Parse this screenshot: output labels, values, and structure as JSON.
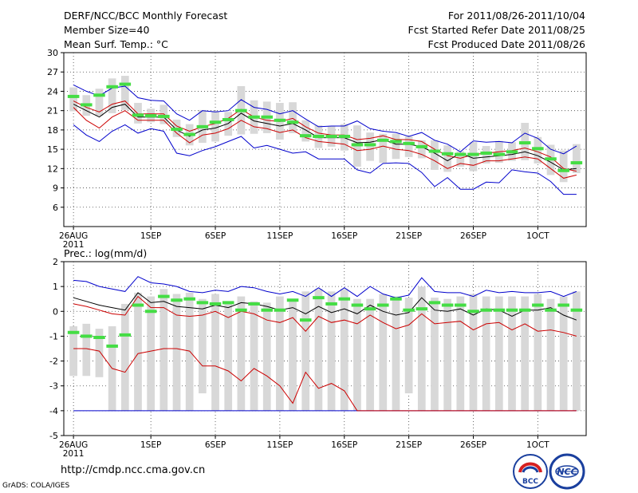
{
  "header": {
    "title": "DERF/NCC/BCC Monthly Forecast",
    "member_size": "Member Size=40",
    "variable": "Mean Surf. Temp.: °C",
    "period": "For 2011/08/26-2011/10/04",
    "started": "Fcst Started Refer Date 2011/08/25",
    "produced": "Fcst Produced Date 2011/08/26"
  },
  "footer": {
    "url": "http://cmdp.ncc.cma.gov.cn",
    "credit": "GrADS: COLA/IGES"
  },
  "logos": {
    "bcc": "BCC",
    "ncc": "NCC"
  },
  "colors": {
    "ensemble_max_min": "#0000cc",
    "ensemble_pm_sd": "#cc0000",
    "ensemble_mean": "#000000",
    "member_spread": "#d8d8d8",
    "climatology": "#44dd44",
    "grid": "#444444"
  },
  "chart_data": [
    {
      "type": "line",
      "title": "Mean Surf. Temp.: °C",
      "x_tick_labels": [
        "26AUG",
        "1SEP",
        "6SEP",
        "11SEP",
        "16SEP",
        "21SEP",
        "26SEP",
        "1OCT"
      ],
      "x_tick_days": [
        1,
        7,
        12,
        17,
        22,
        27,
        32,
        37
      ],
      "x_sublabel": "2011",
      "y_ticks": [
        6,
        9,
        12,
        15,
        18,
        21,
        24,
        27,
        30
      ],
      "ylim": [
        3,
        30
      ],
      "days": 40,
      "series": [
        {
          "name": "max",
          "values": [
            25,
            24,
            23.3,
            24.5,
            24.8,
            23,
            22.6,
            22.5,
            20.5,
            19.5,
            21,
            20.8,
            21,
            22.7,
            21.5,
            21.2,
            20.5,
            21,
            19.7,
            18.5,
            18.6,
            18.6,
            19.4,
            18.2,
            17.8,
            17.6,
            17,
            17.6,
            16.4,
            15.8,
            14.6,
            16.3,
            16.1,
            16.2,
            16,
            17.5,
            16.7,
            15,
            14.3,
            15.5
          ]
        },
        {
          "name": "mean_plus_sd",
          "values": [
            22.5,
            21.5,
            20.8,
            22,
            22.5,
            20.5,
            20.5,
            20.5,
            18.6,
            17.8,
            18.5,
            19,
            19.8,
            21.2,
            20,
            19.5,
            19.3,
            19.8,
            18.5,
            17.5,
            17.2,
            17.2,
            16.5,
            16.7,
            17.1,
            16.5,
            16.5,
            16.2,
            15,
            14,
            13.6,
            14.2,
            14.4,
            14.6,
            14.8,
            15.2,
            14.6,
            13.8,
            12,
            11.6
          ]
        },
        {
          "name": "mean",
          "values": [
            22,
            21,
            20,
            21.5,
            22,
            20,
            20,
            20,
            18,
            17,
            18,
            18.3,
            19,
            20.6,
            19.4,
            19,
            18.6,
            19,
            18,
            16.8,
            16.8,
            16.8,
            16,
            16.1,
            16.5,
            15.8,
            15.8,
            15.4,
            14.4,
            13.2,
            14.4,
            13.6,
            13.8,
            14,
            14.2,
            14.6,
            14,
            13,
            11.8,
            12
          ]
        },
        {
          "name": "mean_minus_sd",
          "values": [
            21.5,
            19.5,
            18.3,
            20,
            21,
            19.5,
            19.5,
            19.5,
            17.5,
            16,
            17.2,
            17.5,
            18.2,
            19.5,
            18.5,
            18.2,
            17.6,
            18,
            16.8,
            16.2,
            16,
            15.8,
            14.8,
            15,
            15.5,
            15,
            14.8,
            14.2,
            13.2,
            12,
            12.8,
            12.5,
            13.2,
            13.2,
            13.5,
            13.8,
            13.5,
            12,
            10.5,
            11
          ]
        },
        {
          "name": "min",
          "values": [
            18.8,
            17.2,
            16.2,
            17.8,
            18.8,
            17.5,
            18.2,
            17.8,
            14.4,
            14,
            14.8,
            15.4,
            16.2,
            17,
            15.2,
            15.6,
            15,
            14.4,
            14.6,
            13.5,
            13.5,
            13.5,
            11.8,
            11.3,
            12.8,
            12.9,
            12.8,
            11.4,
            9.2,
            10.6,
            8.8,
            8.8,
            9.9,
            9.8,
            11.8,
            11.5,
            11.3,
            10,
            8,
            8
          ]
        },
        {
          "name": "spread_top",
          "values": [
            24.6,
            23.4,
            24.4,
            26,
            26.4,
            22.2,
            21.3,
            21.9,
            19.6,
            18.9,
            21.1,
            20.9,
            20.8,
            24.8,
            22.6,
            22.4,
            22.2,
            22.3,
            19.5,
            18.7,
            18.6,
            18.9,
            18.7,
            17.6,
            17.4,
            17.4,
            17,
            16.4,
            16.4,
            15.6,
            14.7,
            16.1,
            15.5,
            16.3,
            16.1,
            19.1,
            16.9,
            15.7,
            14.8,
            15.8
          ]
        },
        {
          "name": "spread_bottom",
          "values": [
            20.9,
            20.2,
            20.2,
            20.6,
            21.1,
            19,
            19.2,
            18.9,
            16.9,
            15.6,
            16,
            16.2,
            17.1,
            17.3,
            17.4,
            17.5,
            16.5,
            17.5,
            16.2,
            15.2,
            15.4,
            14.8,
            12.3,
            13.2,
            12.9,
            13.5,
            13.8,
            13.6,
            11.8,
            11.5,
            12.3,
            11.6,
            12.8,
            12.9,
            13.2,
            13.3,
            12.8,
            11,
            9.9,
            11.3
          ]
        },
        {
          "name": "climatology",
          "values": [
            23.2,
            21.9,
            23.4,
            24.7,
            25.1,
            20.3,
            20.2,
            20.1,
            18.1,
            17.3,
            18.5,
            19.2,
            19.6,
            21,
            20,
            20,
            19.5,
            19.2,
            17.1,
            17,
            17,
            17,
            15.7,
            15.7,
            16.4,
            16.2,
            15.9,
            15.4,
            14.7,
            14.3,
            14.2,
            14.2,
            14.4,
            14.2,
            14.6,
            16,
            15.1,
            13.5,
            11.7,
            12.9
          ]
        }
      ]
    },
    {
      "type": "line",
      "title": "Prec.: log(mm/d)",
      "x_tick_labels": [
        "26AUG",
        "1SEP",
        "6SEP",
        "11SEP",
        "16SEP",
        "21SEP",
        "26SEP",
        "1OCT"
      ],
      "x_tick_days": [
        1,
        7,
        12,
        17,
        22,
        27,
        32,
        37
      ],
      "x_sublabel": "2011",
      "y_ticks": [
        -5,
        -4,
        -3,
        -2,
        -1,
        0,
        1,
        2
      ],
      "ylim": [
        -5,
        2
      ],
      "days": 40,
      "series": [
        {
          "name": "max",
          "values": [
            1.25,
            1.2,
            1,
            0.9,
            0.8,
            1.4,
            1.15,
            1.1,
            1,
            0.8,
            0.75,
            0.85,
            0.8,
            1,
            0.95,
            0.8,
            0.7,
            0.8,
            0.6,
            0.95,
            0.6,
            0.95,
            0.6,
            1,
            0.7,
            0.55,
            0.65,
            1.35,
            0.8,
            0.75,
            0.75,
            0.6,
            0.85,
            0.75,
            0.8,
            0.75,
            0.75,
            0.8,
            0.6,
            0.8
          ]
        },
        {
          "name": "mean",
          "values": [
            0.55,
            0.4,
            0.25,
            0.15,
            0.05,
            0.75,
            0.35,
            0.4,
            0.2,
            0.15,
            0.1,
            0.25,
            0.15,
            0.35,
            0.3,
            0.2,
            0.05,
            0.15,
            -0.1,
            0.2,
            -0.05,
            0.1,
            -0.1,
            0.25,
            0,
            -0.15,
            -0.05,
            0.55,
            0.05,
            0,
            0.1,
            -0.15,
            0.1,
            0.05,
            -0.2,
            0.05,
            0.05,
            0.15,
            -0.15,
            -0.35
          ]
        },
        {
          "name": "mean_plus_sd",
          "values": [
            0.3,
            0.2,
            0.05,
            -0.1,
            -0.15,
            0.6,
            0.15,
            0.15,
            -0.15,
            -0.2,
            -0.15,
            0,
            -0.25,
            0,
            -0.1,
            -0.35,
            -0.45,
            -0.25,
            -0.8,
            -0.2,
            -0.45,
            -0.35,
            -0.5,
            -0.15,
            -0.45,
            -0.7,
            -0.55,
            -0.1,
            -0.5,
            -0.45,
            -0.4,
            -0.75,
            -0.5,
            -0.45,
            -0.75,
            -0.5,
            -0.8,
            -0.75,
            -0.85,
            -1
          ]
        },
        {
          "name": "mean_minus_sd",
          "values": [
            -1.5,
            -1.5,
            -1.6,
            -2.3,
            -2.45,
            -1.7,
            -1.6,
            -1.5,
            -1.5,
            -1.6,
            -2.2,
            -2.2,
            -2.4,
            -2.8,
            -2.3,
            -2.6,
            -3,
            -3.7,
            -2.45,
            -3.1,
            -2.9,
            -3.2,
            -4,
            -4,
            -4,
            -4,
            -4,
            -4,
            -4,
            -4,
            -4,
            -4,
            -4,
            -4,
            -4,
            -4,
            -4,
            -4,
            -4,
            -4
          ]
        },
        {
          "name": "min",
          "values": [
            -4,
            -4,
            -4,
            -4,
            -4,
            -4,
            -4,
            -4,
            -4,
            -4,
            -4,
            -4,
            -4,
            -4,
            -4,
            -4,
            -4,
            -4,
            -4,
            -4,
            -4,
            -4,
            -4,
            -4,
            -4,
            -4,
            -4,
            -4,
            -4,
            -4,
            -4,
            -4,
            -4,
            -4,
            -4,
            -4,
            -4,
            -4,
            -4,
            -4
          ]
        },
        {
          "name": "spread_top",
          "values": [
            -0.6,
            -0.5,
            -0.7,
            -0.6,
            0.3,
            0.75,
            0.6,
            0.9,
            0.7,
            0.75,
            0.5,
            0.7,
            0.3,
            0.6,
            0.4,
            0.35,
            0.6,
            0.4,
            0.8,
            0.9,
            0.8,
            0.9,
            0.5,
            0.5,
            0.7,
            0.6,
            0.55,
            1,
            0.55,
            0.5,
            0.6,
            0.7,
            0.6,
            0.6,
            0.6,
            0.6,
            0.7,
            0.5,
            0.6,
            0.8
          ]
        },
        {
          "name": "spread_bottom",
          "values": [
            -2.6,
            -2.6,
            -2.65,
            -4,
            -4,
            -4,
            -4,
            -4,
            -4,
            -4,
            -3.3,
            -4,
            -4,
            -4,
            -4,
            -4,
            -4,
            -4,
            -4,
            -4,
            -4,
            -4,
            -4,
            -4,
            -4,
            -4,
            -3.3,
            -4,
            -4,
            -4,
            -4,
            -4,
            -4,
            -4,
            -4,
            -4,
            -4,
            -4,
            -4,
            -4
          ]
        },
        {
          "name": "climatology",
          "values": [
            -0.85,
            -1,
            -1.05,
            -1.4,
            -0.95,
            0.25,
            0,
            0.6,
            0.45,
            0.5,
            0.35,
            0.3,
            0.35,
            0.05,
            0.3,
            0.05,
            0.05,
            0.45,
            -0.35,
            0.55,
            0.3,
            0.5,
            0.25,
            0.1,
            0.25,
            0.5,
            0.05,
            0.1,
            0.35,
            0.25,
            0.25,
            0,
            0.05,
            0.05,
            0.05,
            0.05,
            0.25,
            0.05,
            0.25,
            0.05
          ]
        }
      ]
    }
  ]
}
